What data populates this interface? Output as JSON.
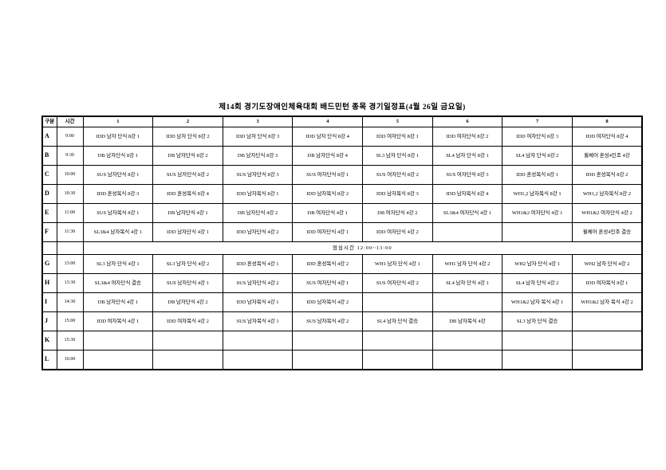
{
  "page": {
    "title": "제14회 경기도장애인체육대회 배드민턴 종목 경기일정표(4월 26일 금요일)",
    "colors": {
      "background": "#ffffff",
      "text": "#000000",
      "grid_lines": "#000000"
    }
  },
  "schedule": {
    "columns": [
      "구분",
      "시간",
      "1",
      "2",
      "3",
      "4",
      "5",
      "6",
      "7",
      "8"
    ],
    "lunch_break": "점심시간  12:00~13:00",
    "morning_rows": [
      {
        "group": "A",
        "time": "9:00",
        "matches": [
          "IDD 남자 단식 8강 1",
          "IDD 남자 단식 8강 2",
          "IDD 남자 단식 8강 3",
          "IDD 남자 단식 8강 4",
          "IDD 여자단식 8강 1",
          "IDD 여자단식 8강 2",
          "IDD 여자단식 8강 3",
          "IDD 여자단식 8강 4"
        ]
      },
      {
        "group": "B",
        "time": "9:30",
        "matches": [
          "DB 남자단식 8강 1",
          "DB 남자단식 8강 2",
          "DB 남자단식 8강 3",
          "DB 남자단식 8강 4",
          "SL3 남자 단식 8강 1",
          "SL4 남자 단식 8강 1",
          "SL4 남자 단식 8강 2",
          "휠체어 혼성4인조 4강"
        ]
      },
      {
        "group": "C",
        "time": "10:00",
        "matches": [
          "SUS 남자단식 8강 1",
          "SUS 남자단식 8강 2",
          "SUS 남자단식 8강 3",
          "SUS 여자단식 8강 1",
          "SUS 여자단식 8강 2",
          "SUS 여자단식 8강 3",
          "IDD 혼성복식 8강 1",
          "IDD 혼성복식 8강 2"
        ]
      },
      {
        "group": "D",
        "time": "10:30",
        "matches": [
          "IDD 혼성복식 8강 3",
          "IDD 혼성복식 8강 4",
          "IDD 남자복식 8강 1",
          "IDD 남자복식 8강 2",
          "IDD 남자복식 8강 3",
          "IDD 남자복식 8강 4",
          "WH1,2 남자복식 8강 1",
          "WH1,2 남자복식 8강 2"
        ]
      },
      {
        "group": "E",
        "time": "11:00",
        "matches": [
          "SUS 남자복식 8강 1",
          "DB 남자단식 4강 1",
          "DB 남자단식 4강 2",
          "DB 여자단식 4강 1",
          "DB 여자단식 4강 2",
          "SL3&4 여자단식 4강 1",
          "WH1&2 여자단식 4강 1",
          "WH1&2 여자단식 4강 2"
        ]
      },
      {
        "group": "F",
        "time": "11:30",
        "matches": [
          "SL3&4 남자복식 4강 1",
          "IDD 남자단식 4강 1",
          "IDD 남자단식 4강 2",
          "IDD 여자단식 4강 1",
          "IDD 여자단식 4강 2",
          "",
          "",
          "휠체어 혼성4인조 결승"
        ]
      }
    ],
    "afternoon_rows": [
      {
        "group": "G",
        "time": "13:00",
        "matches": [
          "SL3 남자 단식 4강 1",
          "SL3 남자 단식 4강 2",
          "IDD 혼성복식 4강 1",
          "IDD 혼성복식 4강 2",
          "WH1 남자 단식 4강 1",
          "WH1 남자 단식 4강 2",
          "WH2 남자 단식 4강 1",
          "WH2 남자 단식 4강 2"
        ]
      },
      {
        "group": "H",
        "time": "13:30",
        "matches": [
          "SL3&4 여자단식 결승",
          "SUS 남자단식 4강 1",
          "SUS 남자단식 4강 2",
          "SUS 여자단식 4강 1",
          "SUS 여자단식 4강 2",
          "SL4 남자 단식 4강 1",
          "SL4 남자 단식 4강 2",
          "IDD 여자복식 8강 1"
        ]
      },
      {
        "group": "I",
        "time": "14:30",
        "matches": [
          "DB 남자단식 4강 1",
          "DB 남자단식 4강 2",
          "IDD 남자복식 4강 1",
          "IDD 남자복식 4강 2",
          "",
          "",
          "WH1&2 남자 복식 4강 1",
          "WH1&2 남자 복식 4강 2"
        ]
      },
      {
        "group": "J",
        "time": "15:00",
        "matches": [
          "IDD 여자복식 4강 1",
          "IDD 여자복식 4강 2",
          "SUS 남자복식 4강 1",
          "SUS 남자복식 4강 2",
          "SL4 남자 단식 결승",
          "DB 남자복식 4강",
          "SL3 남자 단식 결승",
          ""
        ]
      },
      {
        "group": "K",
        "time": "15:30",
        "matches": [
          "",
          "",
          "",
          "",
          "",
          "",
          "",
          ""
        ]
      },
      {
        "group": "L",
        "time": "16:00",
        "matches": [
          "",
          "",
          "",
          "",
          "",
          "",
          "",
          ""
        ]
      }
    ]
  }
}
